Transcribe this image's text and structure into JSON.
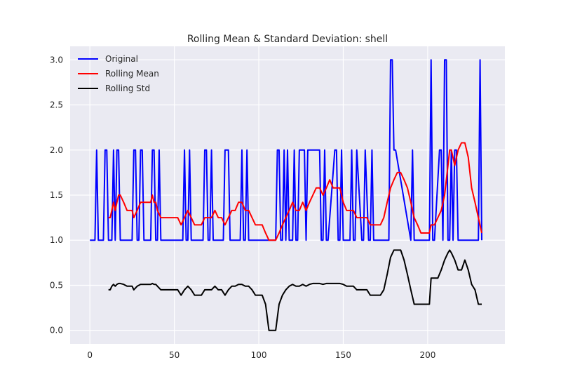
{
  "chart_data": {
    "type": "line",
    "title": "Rolling Mean & Standard Deviation: shell",
    "xlabel": "",
    "ylabel": "",
    "xlim": [
      -11.7,
      245.7
    ],
    "ylim": [
      -0.15,
      3.15
    ],
    "xticks": [
      0,
      50,
      100,
      150,
      200
    ],
    "yticks": [
      0.0,
      0.5,
      1.0,
      1.5,
      2.0,
      2.5,
      3.0
    ],
    "grid": true,
    "legend_position": "top-left",
    "background": "#eaeaf2",
    "series": [
      {
        "name": "Original",
        "color": "#0000ff",
        "x": [
          0,
          3,
          4,
          5,
          6,
          8,
          9,
          10,
          11,
          12,
          13,
          14,
          15,
          16,
          17,
          18,
          19,
          20,
          25,
          26,
          27,
          28,
          29,
          30,
          31,
          32,
          33,
          36,
          37,
          38,
          39,
          40,
          41,
          42,
          43,
          44,
          45,
          46,
          47,
          48,
          49,
          55,
          56,
          57,
          58,
          59,
          60,
          61,
          62,
          67,
          68,
          69,
          70,
          71,
          72,
          73,
          74,
          79,
          80,
          81,
          82,
          83,
          84,
          85,
          86,
          89,
          90,
          91,
          92,
          93,
          94,
          95,
          110,
          111,
          112,
          113,
          114,
          115,
          116,
          117,
          118,
          120,
          121,
          122,
          123,
          124,
          127,
          128,
          129,
          136,
          137,
          138,
          139,
          140,
          141,
          145,
          146,
          147,
          148,
          149,
          150,
          154,
          155,
          156,
          157,
          158,
          161,
          162,
          163,
          165,
          166,
          167,
          168,
          169,
          170,
          177,
          178,
          179,
          180,
          181,
          190,
          191,
          192,
          195,
          200,
          201,
          202,
          203,
          204,
          207,
          208,
          209,
          210,
          211,
          212,
          213,
          214,
          215,
          216,
          217,
          218,
          219,
          230,
          231,
          232
        ],
        "y": [
          1,
          1,
          2,
          1,
          1,
          1,
          2,
          2,
          1,
          1,
          1,
          2,
          1,
          2,
          2,
          1,
          1,
          1,
          1,
          2,
          2,
          1,
          1,
          2,
          2,
          1,
          1,
          1,
          2,
          2,
          1,
          1,
          2,
          1,
          1,
          1,
          1,
          1,
          1,
          1,
          1,
          1,
          2,
          1,
          1,
          2,
          1,
          1,
          1,
          1,
          2,
          2,
          1,
          1,
          2,
          1,
          1,
          1,
          2,
          2,
          2,
          1,
          1,
          1,
          1,
          1,
          2,
          1,
          1,
          2,
          1,
          1,
          1,
          2,
          2,
          1,
          1,
          2,
          1,
          2,
          1,
          1,
          2,
          1,
          1,
          2,
          2,
          1,
          2,
          2,
          1,
          1,
          2,
          1,
          1,
          2,
          2,
          1,
          1,
          2,
          1,
          1,
          2,
          1,
          1,
          2,
          1,
          1,
          2,
          1,
          1,
          2,
          1,
          1,
          1,
          1,
          3,
          3,
          2,
          2,
          1,
          2,
          1,
          1,
          1,
          1,
          3,
          1,
          1,
          2,
          2,
          1,
          3,
          3,
          1,
          1,
          2,
          1,
          2,
          2,
          1,
          1,
          1,
          3,
          1
        ]
      },
      {
        "name": "Rolling Mean",
        "color": "#ff0000",
        "x": [
          11,
          12,
          13,
          14,
          15,
          16,
          17,
          18,
          20,
          22,
          24,
          25,
          26,
          28,
          30,
          32,
          34,
          36,
          37,
          38,
          39,
          40,
          42,
          44,
          46,
          48,
          50,
          52,
          54,
          56,
          58,
          60,
          62,
          64,
          66,
          68,
          70,
          72,
          74,
          76,
          78,
          80,
          82,
          84,
          86,
          88,
          90,
          92,
          94,
          96,
          98,
          100,
          102,
          104,
          106,
          108,
          110,
          112,
          114,
          116,
          118,
          120,
          122,
          124,
          126,
          128,
          130,
          132,
          134,
          136,
          138,
          140,
          142,
          144,
          146,
          148,
          150,
          152,
          154,
          156,
          158,
          160,
          162,
          164,
          166,
          168,
          170,
          172,
          174,
          176,
          178,
          180,
          182,
          184,
          186,
          188,
          190,
          192,
          194,
          196,
          198,
          200,
          201,
          202,
          204,
          206,
          208,
          210,
          212,
          213,
          214,
          216,
          218,
          220,
          222,
          224,
          226,
          228,
          230,
          232
        ],
        "y": [
          1.25,
          1.25,
          1.33,
          1.42,
          1.33,
          1.42,
          1.5,
          1.5,
          1.42,
          1.33,
          1.33,
          1.33,
          1.25,
          1.33,
          1.42,
          1.42,
          1.42,
          1.42,
          1.5,
          1.42,
          1.42,
          1.33,
          1.25,
          1.25,
          1.25,
          1.25,
          1.25,
          1.25,
          1.17,
          1.25,
          1.33,
          1.25,
          1.17,
          1.17,
          1.17,
          1.25,
          1.25,
          1.25,
          1.33,
          1.25,
          1.25,
          1.17,
          1.25,
          1.33,
          1.33,
          1.42,
          1.42,
          1.33,
          1.33,
          1.25,
          1.17,
          1.17,
          1.17,
          1.08,
          1.0,
          1.0,
          1.0,
          1.08,
          1.17,
          1.25,
          1.33,
          1.42,
          1.33,
          1.33,
          1.42,
          1.33,
          1.42,
          1.5,
          1.58,
          1.58,
          1.5,
          1.58,
          1.67,
          1.58,
          1.58,
          1.58,
          1.42,
          1.33,
          1.33,
          1.33,
          1.25,
          1.25,
          1.25,
          1.25,
          1.17,
          1.17,
          1.17,
          1.17,
          1.25,
          1.42,
          1.58,
          1.67,
          1.75,
          1.75,
          1.67,
          1.58,
          1.42,
          1.25,
          1.17,
          1.08,
          1.08,
          1.08,
          1.08,
          1.17,
          1.17,
          1.25,
          1.33,
          1.5,
          1.83,
          2.0,
          2.0,
          1.83,
          2.0,
          2.08,
          2.08,
          1.92,
          1.58,
          1.42,
          1.25,
          1.08
        ]
      },
      {
        "name": "Rolling Std",
        "color": "#000000",
        "x": [
          11,
          12,
          13,
          14,
          15,
          16,
          17,
          18,
          20,
          22,
          24,
          25,
          26,
          28,
          30,
          32,
          34,
          36,
          37,
          38,
          39,
          40,
          42,
          44,
          46,
          48,
          50,
          52,
          54,
          56,
          58,
          60,
          62,
          64,
          66,
          68,
          70,
          72,
          74,
          76,
          78,
          80,
          82,
          84,
          86,
          88,
          90,
          92,
          94,
          96,
          98,
          100,
          102,
          104,
          106,
          108,
          110,
          112,
          114,
          116,
          118,
          120,
          122,
          124,
          126,
          128,
          130,
          132,
          134,
          136,
          138,
          140,
          142,
          144,
          146,
          148,
          150,
          152,
          154,
          156,
          158,
          160,
          162,
          164,
          166,
          168,
          170,
          172,
          174,
          176,
          178,
          180,
          182,
          184,
          186,
          188,
          190,
          192,
          194,
          196,
          198,
          200,
          201,
          202,
          204,
          206,
          208,
          210,
          212,
          213,
          214,
          216,
          218,
          220,
          222,
          224,
          226,
          228,
          230,
          232
        ],
        "y": [
          0.45,
          0.45,
          0.49,
          0.51,
          0.49,
          0.51,
          0.52,
          0.52,
          0.51,
          0.49,
          0.49,
          0.49,
          0.45,
          0.49,
          0.51,
          0.51,
          0.51,
          0.51,
          0.52,
          0.51,
          0.51,
          0.49,
          0.45,
          0.45,
          0.45,
          0.45,
          0.45,
          0.45,
          0.39,
          0.45,
          0.49,
          0.45,
          0.39,
          0.39,
          0.39,
          0.45,
          0.45,
          0.45,
          0.49,
          0.45,
          0.45,
          0.39,
          0.45,
          0.49,
          0.49,
          0.51,
          0.51,
          0.49,
          0.49,
          0.45,
          0.39,
          0.39,
          0.39,
          0.29,
          0.0,
          0.0,
          0.0,
          0.29,
          0.39,
          0.45,
          0.49,
          0.51,
          0.49,
          0.49,
          0.51,
          0.49,
          0.51,
          0.52,
          0.52,
          0.52,
          0.51,
          0.52,
          0.52,
          0.52,
          0.52,
          0.52,
          0.51,
          0.49,
          0.49,
          0.49,
          0.45,
          0.45,
          0.45,
          0.45,
          0.39,
          0.39,
          0.39,
          0.39,
          0.45,
          0.62,
          0.81,
          0.89,
          0.89,
          0.89,
          0.78,
          0.62,
          0.45,
          0.29,
          0.29,
          0.29,
          0.29,
          0.29,
          0.29,
          0.58,
          0.58,
          0.58,
          0.67,
          0.78,
          0.86,
          0.89,
          0.86,
          0.78,
          0.67,
          0.67,
          0.78,
          0.67,
          0.51,
          0.45,
          0.29,
          0.29
        ]
      }
    ]
  }
}
